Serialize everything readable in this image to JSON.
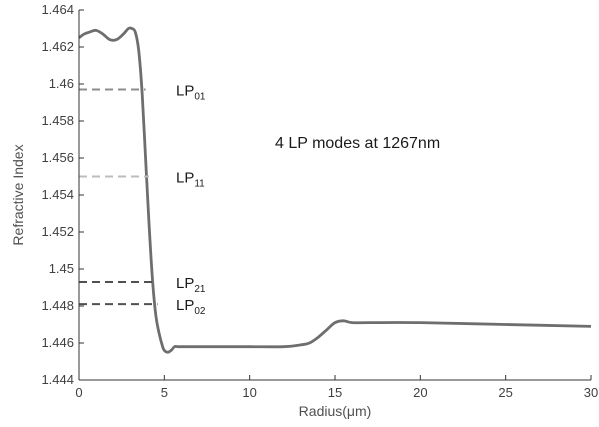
{
  "chart_data": {
    "type": "line",
    "xlabel": "Radius(μm)",
    "ylabel": "Refractive Index",
    "xlim": [
      0,
      30
    ],
    "ylim": [
      1.444,
      1.464
    ],
    "x_ticks": [
      "0",
      "5",
      "10",
      "15",
      "20",
      "25",
      "30"
    ],
    "y_ticks": [
      "1.444",
      "1.446",
      "1.448",
      "1.45",
      "1.452",
      "1.454",
      "1.456",
      "1.458",
      "1.46",
      "1.462",
      "1.464"
    ],
    "grid": false,
    "colors": {
      "profile": "#6e6e6e",
      "axis": "#333333"
    },
    "series": [
      {
        "x": [
          0,
          0.3,
          0.6,
          1.0,
          1.4,
          1.8,
          2.2,
          2.6,
          2.9,
          3.1,
          3.3,
          3.5,
          3.7,
          3.9,
          4.1,
          4.3,
          4.5,
          4.7,
          4.9,
          5.0,
          5.2,
          5.4,
          5.6,
          5.8,
          6.2,
          7.0,
          8.0,
          10.0,
          12.0,
          13.0,
          13.5,
          14.0,
          14.5,
          15.0,
          15.5,
          16.0,
          17.0,
          20.0,
          25.0,
          30.0
        ],
        "values": [
          1.4625,
          1.4627,
          1.4628,
          1.4629,
          1.4627,
          1.4624,
          1.4624,
          1.4627,
          1.463,
          1.463,
          1.4628,
          1.4618,
          1.4595,
          1.456,
          1.4525,
          1.4495,
          1.4475,
          1.4465,
          1.4458,
          1.4456,
          1.4455,
          1.4456,
          1.4458,
          1.4458,
          1.4458,
          1.4458,
          1.4458,
          1.4458,
          1.4458,
          1.4459,
          1.446,
          1.4463,
          1.4467,
          1.4471,
          1.4472,
          1.4471,
          1.4471,
          1.4471,
          1.447,
          1.4469
        ]
      }
    ],
    "modes": [
      {
        "label": "LP",
        "sub": "01",
        "neff": 1.4597,
        "x_end": 3.9,
        "color": "#8c8c8c"
      },
      {
        "label": "LP",
        "sub": "11",
        "neff": 1.455,
        "x_end": 4.1,
        "color": "#bdbdbd"
      },
      {
        "label": "LP",
        "sub": "21",
        "neff": 1.4493,
        "x_end": 4.5,
        "color": "#505050"
      },
      {
        "label": "LP",
        "sub": "02",
        "neff": 1.4481,
        "x_end": 4.6,
        "color": "#505050"
      }
    ],
    "annotation": "4 LP modes at 1267nm"
  }
}
